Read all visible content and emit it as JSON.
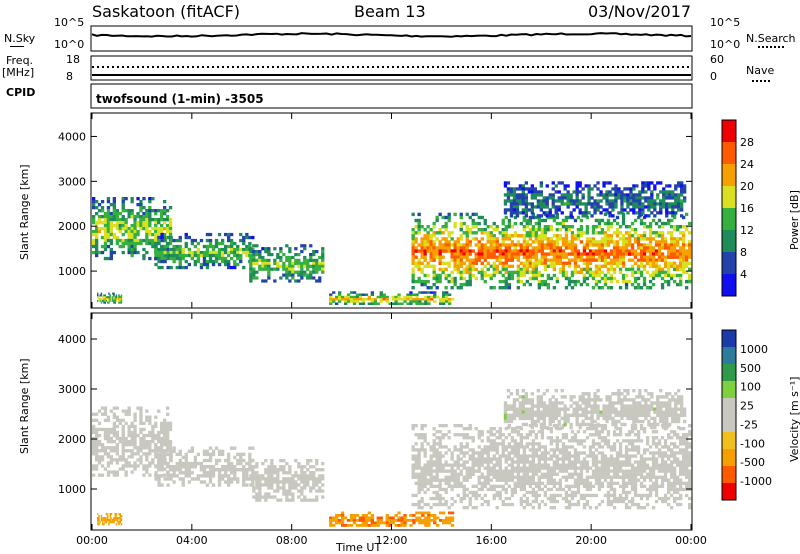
{
  "header": {
    "station": "Saskatoon (fitACF)",
    "beam": "Beam 13",
    "date": "03/Nov/2017"
  },
  "summary_panel": {
    "nsky_label": "N.Sky",
    "nsky_ticks": [
      "10^5",
      "10^0"
    ],
    "nsearch_label": "N.Search",
    "nsearch_ticks": [
      "10^5",
      "10^0"
    ],
    "freq_label_1": "Freq.",
    "freq_label_2": "[MHz]",
    "freq_ticks": [
      "18",
      "8"
    ],
    "nave_label": "Nave",
    "nave_ticks": [
      "60",
      "0"
    ],
    "cpid_label": "CPID",
    "cpid_text": "twofsound (1-min) -3505"
  },
  "colors": {
    "power_scale": [
      "#1010ee",
      "#2244aa",
      "#1f8a5a",
      "#35b040",
      "#d8e020",
      "#f5a000",
      "#ff5a00",
      "#ee0000"
    ],
    "velocity_scale": [
      "#ee0000",
      "#ff5a00",
      "#f5a000",
      "#f0c020",
      "#c8c8c0",
      "#c8c8c0",
      "#7ed040",
      "#2e9a4a",
      "#2e7a9a",
      "#1a3aaa"
    ],
    "ground_scatter": "#c8c8c0"
  },
  "chart_data": [
    {
      "type": "heatmap",
      "panel": "power",
      "ylabel": "Slant Range [km]",
      "ylim": [
        200,
        4500
      ],
      "yticks": [
        "1000",
        "2000",
        "3000",
        "4000"
      ],
      "xlim": [
        0,
        24
      ],
      "xticks": [
        "00:00",
        "04:00",
        "08:00",
        "12:00",
        "16:00",
        "20:00",
        "00:00"
      ],
      "colorbar_label": "Power [dB]",
      "colorbar_ticks": [
        "4",
        "8",
        "12",
        "16",
        "20",
        "24",
        "28"
      ],
      "regions": [
        {
          "t": [
            0.0,
            3.2
          ],
          "r": [
            1250,
            2650
          ],
          "level": 0.55
        },
        {
          "t": [
            0.2,
            1.2
          ],
          "r": [
            280,
            520
          ],
          "level": 0.6
        },
        {
          "t": [
            2.5,
            6.5
          ],
          "r": [
            1050,
            1850
          ],
          "level": 0.45
        },
        {
          "t": [
            6.3,
            9.3
          ],
          "r": [
            750,
            1600
          ],
          "level": 0.5
        },
        {
          "t": [
            9.5,
            14.5
          ],
          "r": [
            250,
            550
          ],
          "level": 0.65
        },
        {
          "t": [
            12.8,
            24.0
          ],
          "r": [
            600,
            2300
          ],
          "level": 0.85
        },
        {
          "t": [
            16.5,
            23.8
          ],
          "r": [
            2200,
            3000
          ],
          "level": 0.25
        }
      ]
    },
    {
      "type": "heatmap",
      "panel": "velocity",
      "ylabel": "Slant Range [km]",
      "ylim": [
        200,
        4500
      ],
      "yticks": [
        "1000",
        "2000",
        "3000",
        "4000"
      ],
      "xlim": [
        0,
        24
      ],
      "xticks": [
        "00:00",
        "04:00",
        "08:00",
        "12:00",
        "16:00",
        "20:00",
        "00:00"
      ],
      "xlabel": "Time UT",
      "colorbar_label": "Velocity [m s⁻¹]",
      "colorbar_ticks": [
        "1000",
        "500",
        "100",
        "25",
        "-25",
        "-100",
        "-500",
        "-1000"
      ],
      "regions": [
        {
          "t": [
            0.0,
            3.2
          ],
          "r": [
            1250,
            2650
          ],
          "level": 0.0
        },
        {
          "t": [
            0.2,
            1.2
          ],
          "r": [
            280,
            520
          ],
          "level": -0.5
        },
        {
          "t": [
            2.5,
            6.5
          ],
          "r": [
            1050,
            1850
          ],
          "level": 0.0
        },
        {
          "t": [
            6.3,
            9.3
          ],
          "r": [
            750,
            1600
          ],
          "level": 0.0
        },
        {
          "t": [
            9.5,
            14.5
          ],
          "r": [
            250,
            550
          ],
          "level": -0.6
        },
        {
          "t": [
            12.8,
            24.0
          ],
          "r": [
            600,
            2300
          ],
          "level": 0.0
        },
        {
          "t": [
            16.5,
            23.8
          ],
          "r": [
            2200,
            3000
          ],
          "level": 0.1
        }
      ]
    }
  ]
}
